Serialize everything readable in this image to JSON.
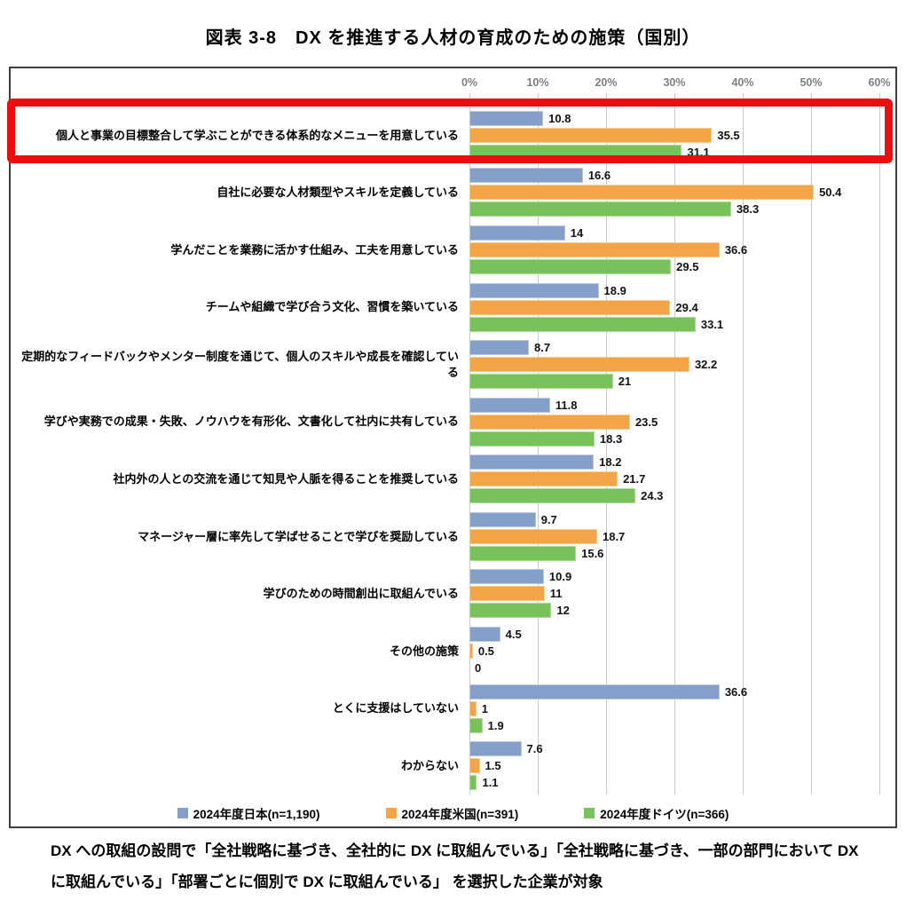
{
  "page": {
    "title": "図表 3-8　DX を推進する人材の育成のための施策（国別）"
  },
  "chart_data": {
    "type": "bar",
    "orientation": "horizontal",
    "title": "図表 3-8　DX を推進する人材の育成のための施策（国別）",
    "categories": [
      "個人と事業の目標整合して学ぶことができる体系的なメニューを用意している",
      "自社に必要な人材類型やスキルを定義している",
      "学んだことを業務に活かす仕組み、工夫を用意している",
      "チームや組織で学び合う文化、習慣を築いている",
      "定期的なフィードバックやメンター制度を通じて、個人のスキルや成長を確認している",
      "学びや実務での成果・失敗、ノウハウを有形化、文書化して社内に共有している",
      "社内外の人との交流を通じて知見や人脈を得ることを推奨している",
      "マネージャー層に率先して学ばせることで学びを奨励している",
      "学びのための時間創出に取組んでいる",
      "その他の施策",
      "とくに支援はしていない",
      "わからない"
    ],
    "series": [
      {
        "name": "2024年度日本(n=1,190)",
        "color": "#84a0c8",
        "border_color": "#b9c8de",
        "values": [
          10.8,
          16.6,
          14,
          18.9,
          8.7,
          11.8,
          18.2,
          9.7,
          10.9,
          4.5,
          36.6,
          7.6
        ]
      },
      {
        "name": "2024年度米国(n=391)",
        "color": "#f3a447",
        "border_color": "#f8cb93",
        "values": [
          35.5,
          50.4,
          36.6,
          29.4,
          32.2,
          23.5,
          21.7,
          18.7,
          11,
          0.5,
          1,
          1.5
        ]
      },
      {
        "name": "2024年度ドイツ(n=366)",
        "color": "#79c25b",
        "border_color": "#aeda97",
        "values": [
          31.1,
          38.3,
          29.5,
          33.1,
          21,
          18.3,
          24.3,
          15.6,
          12,
          0,
          1.9,
          1.1
        ]
      }
    ],
    "x_axis": {
      "ticks": [
        "0%",
        "10%",
        "20%",
        "30%",
        "40%",
        "50%",
        "60%"
      ],
      "min": 0,
      "max": 60,
      "grid": true,
      "position": "top"
    },
    "legend_position": "bottom",
    "gridline_color": "#c9c9c9",
    "box_border_color": "#3f3f3f"
  },
  "annotations": {
    "highlighted_category_index": 0,
    "highlight_color": "#eb0f0f"
  },
  "footnote": "DX への取組の設問で「全社戦略に基づき、全社的に DX に取組んでいる」「全社戦略に基づき、一部の部門において DX に取組んでいる」「部署ごとに個別で DX に取組んでいる」 を選択した企業が対象"
}
